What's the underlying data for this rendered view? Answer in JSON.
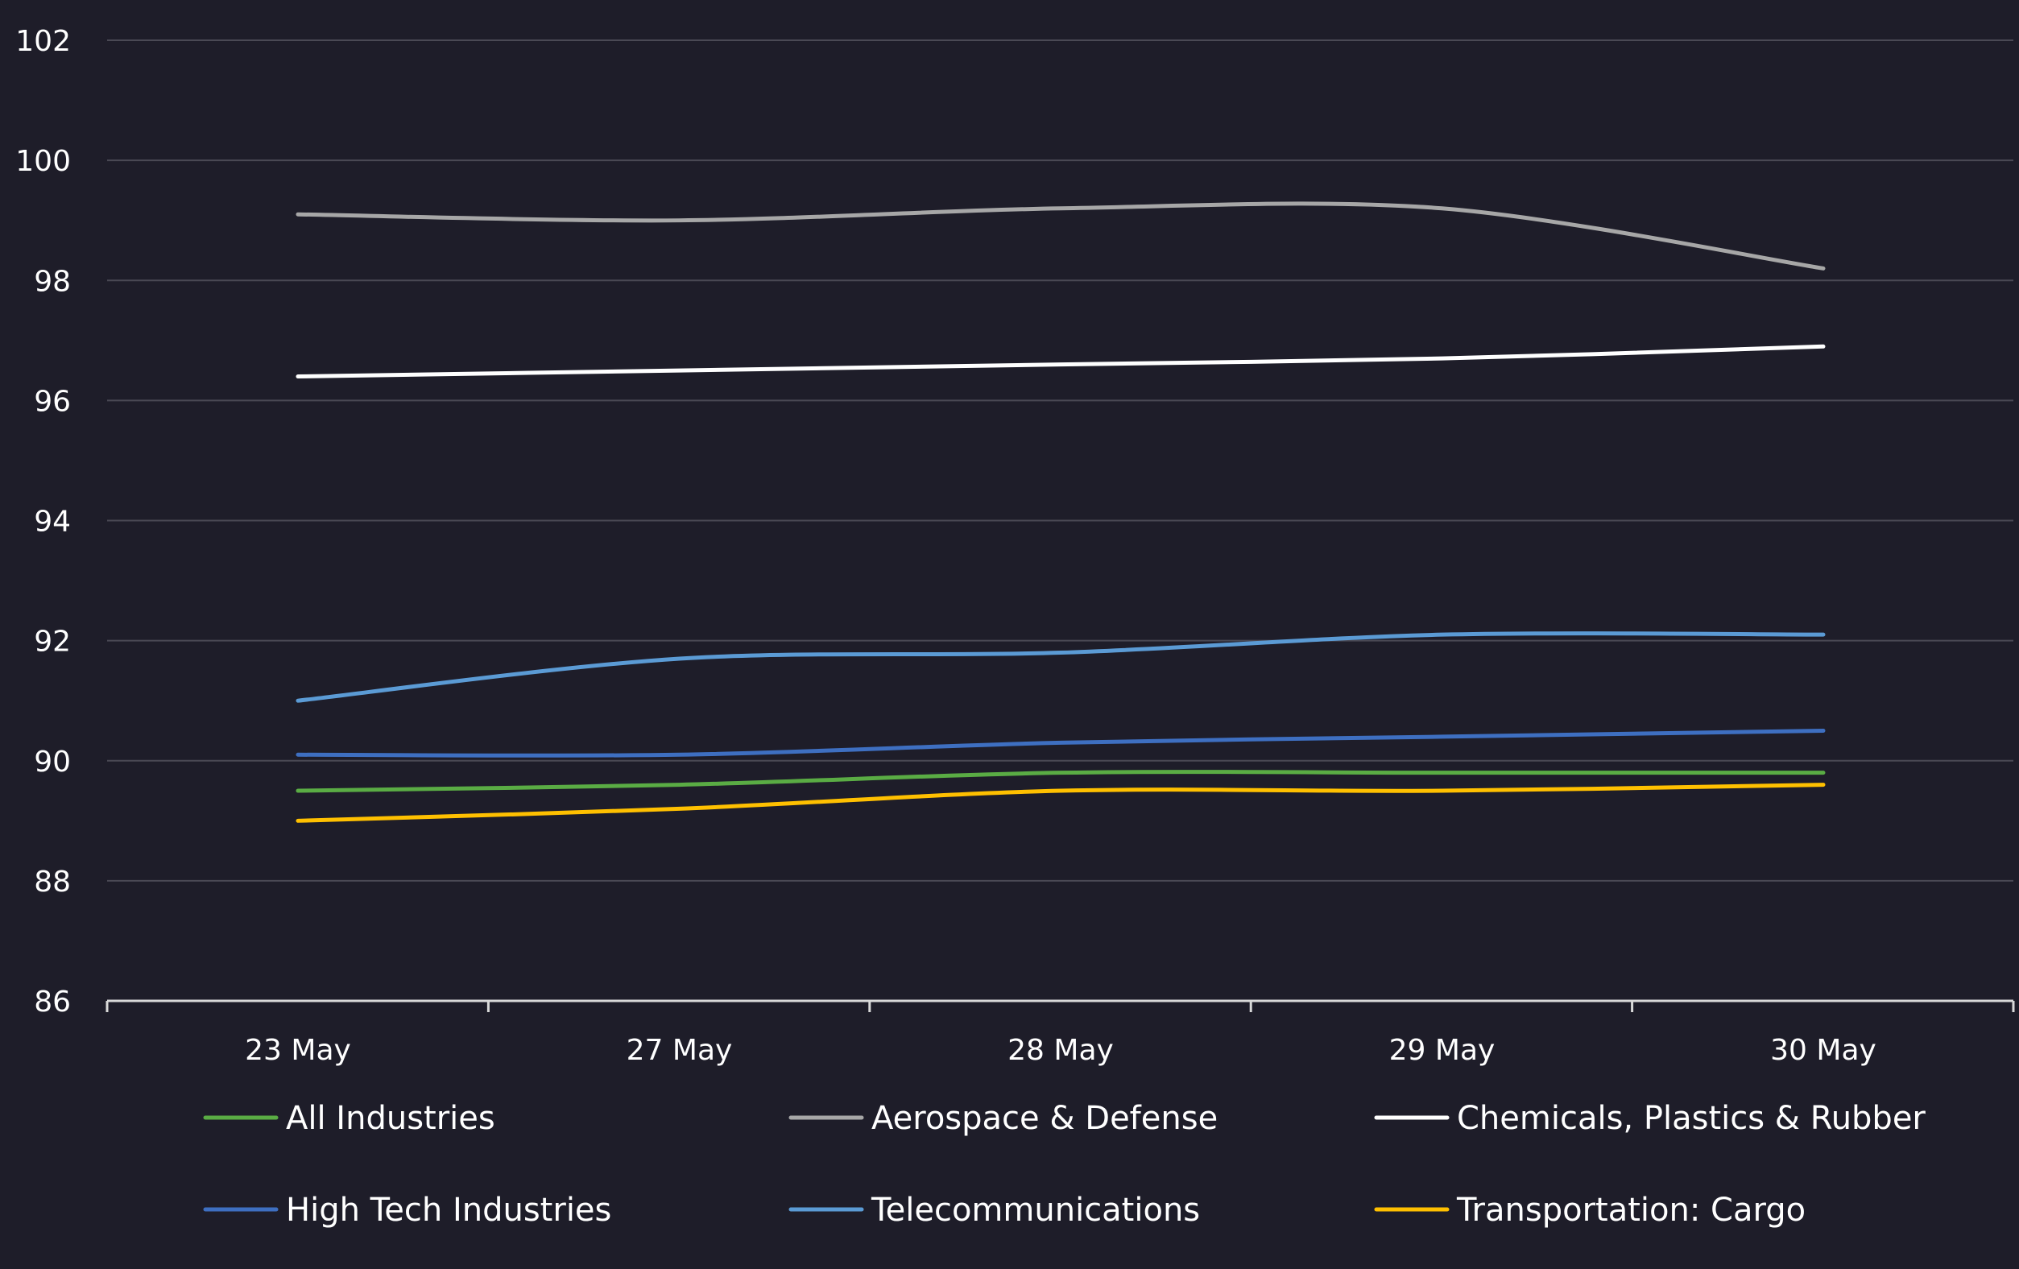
{
  "chart_data": {
    "type": "line",
    "categories": [
      "23 May",
      "27 May",
      "28 May",
      "29 May",
      "30 May"
    ],
    "ylim": [
      86,
      102
    ],
    "yticks": [
      86,
      88,
      90,
      92,
      94,
      96,
      98,
      100,
      102
    ],
    "grid": true,
    "legend_position": "bottom",
    "series": [
      {
        "name": "All Industries",
        "color": "#5aac44",
        "values": [
          89.5,
          89.6,
          89.8,
          89.8,
          89.8
        ]
      },
      {
        "name": "Aerospace & Defense",
        "color": "#a7a7a7",
        "values": [
          99.1,
          99.0,
          99.2,
          99.2,
          98.2
        ]
      },
      {
        "name": "Chemicals, Plastics & Rubber",
        "color": "#ffffff",
        "values": [
          96.4,
          96.5,
          96.6,
          96.7,
          96.9
        ]
      },
      {
        "name": "High Tech Industries",
        "color": "#3e6fc1",
        "values": [
          90.1,
          90.1,
          90.3,
          90.4,
          90.5
        ]
      },
      {
        "name": "Telecommunications",
        "color": "#5b9bd5",
        "values": [
          91.0,
          91.7,
          91.8,
          92.1,
          92.1
        ]
      },
      {
        "name": "Transportation: Cargo",
        "color": "#ffc000",
        "values": [
          89.0,
          89.2,
          89.5,
          89.5,
          89.6
        ]
      }
    ]
  }
}
